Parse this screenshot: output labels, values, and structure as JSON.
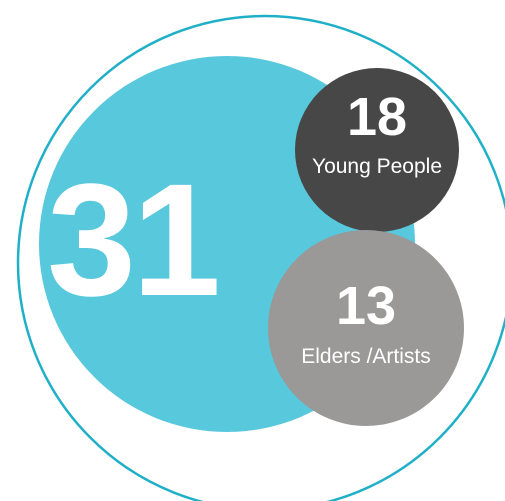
{
  "chart_data": {
    "type": "bubble",
    "total": {
      "value": "31",
      "color": "#58C8DC",
      "outline_color": "#1FB0C8"
    },
    "segments": [
      {
        "value": "18",
        "label": "Young People",
        "color": "#474747"
      },
      {
        "value": "13",
        "label": "Elders /Artists",
        "color": "#9B9898"
      }
    ],
    "background": "#FFFFFF",
    "text_color": "#FFFFFF"
  }
}
